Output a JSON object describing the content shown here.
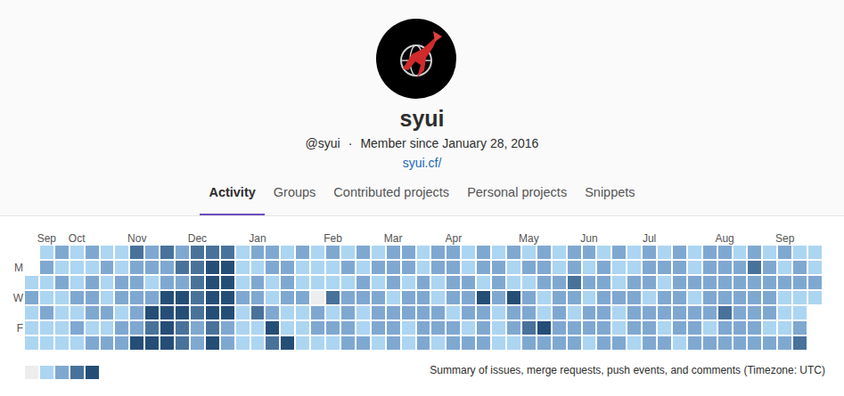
{
  "profile": {
    "name": "syui",
    "username": "@syui",
    "separator": "·",
    "member_since": "Member since January 28, 2016",
    "link": "syui.cf/"
  },
  "tabs": {
    "items": [
      "Activity",
      "Groups",
      "Contributed projects",
      "Personal projects",
      "Snippets"
    ],
    "active": "Activity"
  },
  "chart_data": {
    "type": "heatmap",
    "months": [
      {
        "label": "Sep",
        "week": 1
      },
      {
        "label": "Oct",
        "week": 3
      },
      {
        "label": "Nov",
        "week": 7
      },
      {
        "label": "Dec",
        "week": 11
      },
      {
        "label": "Jan",
        "week": 15
      },
      {
        "label": "Feb",
        "week": 20
      },
      {
        "label": "Mar",
        "week": 24
      },
      {
        "label": "Apr",
        "week": 28
      },
      {
        "label": "May",
        "week": 33
      },
      {
        "label": "Jun",
        "week": 37
      },
      {
        "label": "Jul",
        "week": 41
      },
      {
        "label": "Aug",
        "week": 46
      },
      {
        "label": "Sep",
        "week": 50
      }
    ],
    "days": [
      null,
      "M",
      null,
      "W",
      null,
      "F",
      null
    ],
    "weeks": [
      [
        null,
        null,
        1,
        2,
        1,
        1,
        1
      ],
      [
        1,
        2,
        1,
        1,
        2,
        1,
        1
      ],
      [
        2,
        1,
        2,
        1,
        1,
        1,
        1
      ],
      [
        1,
        1,
        1,
        2,
        1,
        2,
        1
      ],
      [
        2,
        1,
        2,
        2,
        2,
        1,
        2
      ],
      [
        1,
        2,
        1,
        1,
        2,
        1,
        2
      ],
      [
        1,
        1,
        2,
        2,
        1,
        2,
        2
      ],
      [
        3,
        2,
        2,
        2,
        2,
        2,
        4
      ],
      [
        2,
        2,
        1,
        2,
        4,
        3,
        4
      ],
      [
        3,
        2,
        2,
        4,
        4,
        4,
        4
      ],
      [
        2,
        3,
        2,
        4,
        4,
        3,
        3
      ],
      [
        3,
        3,
        3,
        3,
        3,
        2,
        2
      ],
      [
        3,
        4,
        4,
        4,
        4,
        3,
        4
      ],
      [
        3,
        4,
        4,
        4,
        4,
        2,
        2
      ],
      [
        1,
        1,
        1,
        2,
        1,
        1,
        1
      ],
      [
        2,
        1,
        2,
        2,
        3,
        1,
        1
      ],
      [
        2,
        2,
        1,
        1,
        2,
        4,
        3
      ],
      [
        1,
        2,
        2,
        2,
        1,
        1,
        4
      ],
      [
        2,
        1,
        1,
        2,
        1,
        1,
        1
      ],
      [
        1,
        1,
        1,
        0,
        2,
        2,
        1
      ],
      [
        2,
        1,
        1,
        3,
        1,
        2,
        1
      ],
      [
        1,
        2,
        1,
        2,
        2,
        2,
        2
      ],
      [
        2,
        1,
        2,
        2,
        1,
        1,
        2
      ],
      [
        1,
        2,
        1,
        2,
        2,
        2,
        1
      ],
      [
        2,
        2,
        2,
        1,
        2,
        2,
        2
      ],
      [
        2,
        2,
        1,
        2,
        2,
        1,
        1
      ],
      [
        1,
        1,
        2,
        2,
        2,
        2,
        2
      ],
      [
        2,
        2,
        1,
        1,
        2,
        2,
        1
      ],
      [
        2,
        2,
        2,
        2,
        1,
        2,
        2
      ],
      [
        1,
        1,
        2,
        2,
        2,
        1,
        2
      ],
      [
        2,
        2,
        1,
        4,
        2,
        2,
        2
      ],
      [
        1,
        2,
        2,
        2,
        1,
        1,
        1
      ],
      [
        2,
        1,
        1,
        4,
        2,
        2,
        1
      ],
      [
        1,
        2,
        1,
        2,
        2,
        3,
        2
      ],
      [
        2,
        2,
        2,
        1,
        1,
        4,
        2
      ],
      [
        1,
        1,
        2,
        2,
        2,
        2,
        2
      ],
      [
        2,
        2,
        3,
        2,
        1,
        2,
        2
      ],
      [
        2,
        1,
        2,
        1,
        2,
        2,
        1
      ],
      [
        1,
        2,
        2,
        2,
        2,
        2,
        2
      ],
      [
        2,
        1,
        1,
        2,
        1,
        1,
        2
      ],
      [
        1,
        1,
        2,
        2,
        2,
        2,
        1
      ],
      [
        2,
        2,
        2,
        1,
        2,
        2,
        2
      ],
      [
        1,
        2,
        1,
        2,
        2,
        1,
        2
      ],
      [
        2,
        2,
        2,
        2,
        2,
        2,
        1
      ],
      [
        1,
        1,
        2,
        1,
        2,
        2,
        2
      ],
      [
        2,
        2,
        2,
        2,
        2,
        1,
        2
      ],
      [
        2,
        2,
        2,
        2,
        3,
        2,
        2
      ],
      [
        1,
        2,
        2,
        2,
        2,
        2,
        2
      ],
      [
        2,
        3,
        2,
        2,
        2,
        2,
        2
      ],
      [
        1,
        2,
        2,
        2,
        2,
        1,
        2
      ],
      [
        2,
        1,
        2,
        1,
        1,
        1,
        2
      ],
      [
        1,
        2,
        2,
        1,
        1,
        2,
        3
      ],
      [
        1,
        1,
        2,
        1,
        null,
        null,
        null
      ]
    ],
    "levels": [
      0,
      1,
      2,
      3,
      4
    ],
    "colors": [
      "#ededed",
      "#acd5f2",
      "#7fa8d1",
      "#49729b",
      "#254e77"
    ],
    "caption": "Summary of issues, merge requests, push events, and comments (Timezone: UTC)"
  }
}
